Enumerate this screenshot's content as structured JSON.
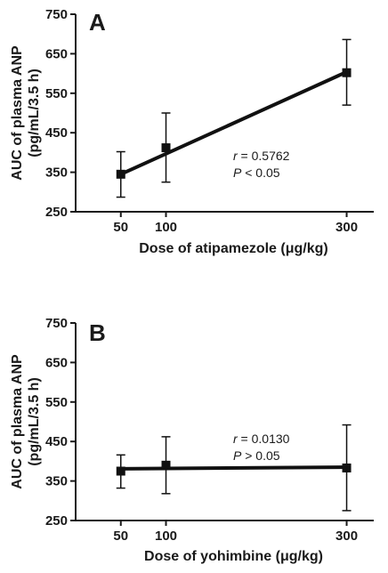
{
  "chart_data": [
    {
      "type": "line",
      "panel_label": "A",
      "ylabel": "AUC of plasma ANP\n(pg/mL/3.5 h)",
      "xlabel": "Dose of atipamezole (μg/kg)",
      "x": [
        50,
        100,
        300
      ],
      "xticks": [
        50,
        100,
        300
      ],
      "yticks": [
        250,
        350,
        450,
        550,
        650,
        750
      ],
      "ylim": [
        250,
        750
      ],
      "xlim": [
        0,
        330
      ],
      "series": [
        {
          "values": [
            345,
            412,
            602
          ],
          "err_low": [
            287,
            325,
            520
          ],
          "err_high": [
            402,
            500,
            686
          ],
          "fit_start": [
            50,
            345
          ],
          "fit_end": [
            300,
            604
          ]
        }
      ],
      "annotation": {
        "r_symbol": "r",
        "r_text": " = 0.5762",
        "p_symbol": "P",
        "p_text": " < 0.05"
      },
      "grid": false
    },
    {
      "type": "line",
      "panel_label": "B",
      "ylabel": "AUC of plasma ANP\n(pg/mL/3.5 h)",
      "xlabel": "Dose of yohimbine (μg/kg)",
      "x": [
        50,
        100,
        300
      ],
      "xticks": [
        50,
        100,
        300
      ],
      "yticks": [
        250,
        350,
        450,
        550,
        650,
        750
      ],
      "ylim": [
        250,
        750
      ],
      "xlim": [
        0,
        330
      ],
      "series": [
        {
          "values": [
            375,
            390,
            383
          ],
          "err_low": [
            332,
            318,
            275
          ],
          "err_high": [
            416,
            462,
            492
          ],
          "fit_start": [
            50,
            381
          ],
          "fit_end": [
            300,
            385
          ]
        }
      ],
      "annotation": {
        "r_symbol": "r",
        "r_text": " = 0.0130",
        "p_symbol": "P",
        "p_text": " > 0.05"
      },
      "grid": false
    }
  ]
}
